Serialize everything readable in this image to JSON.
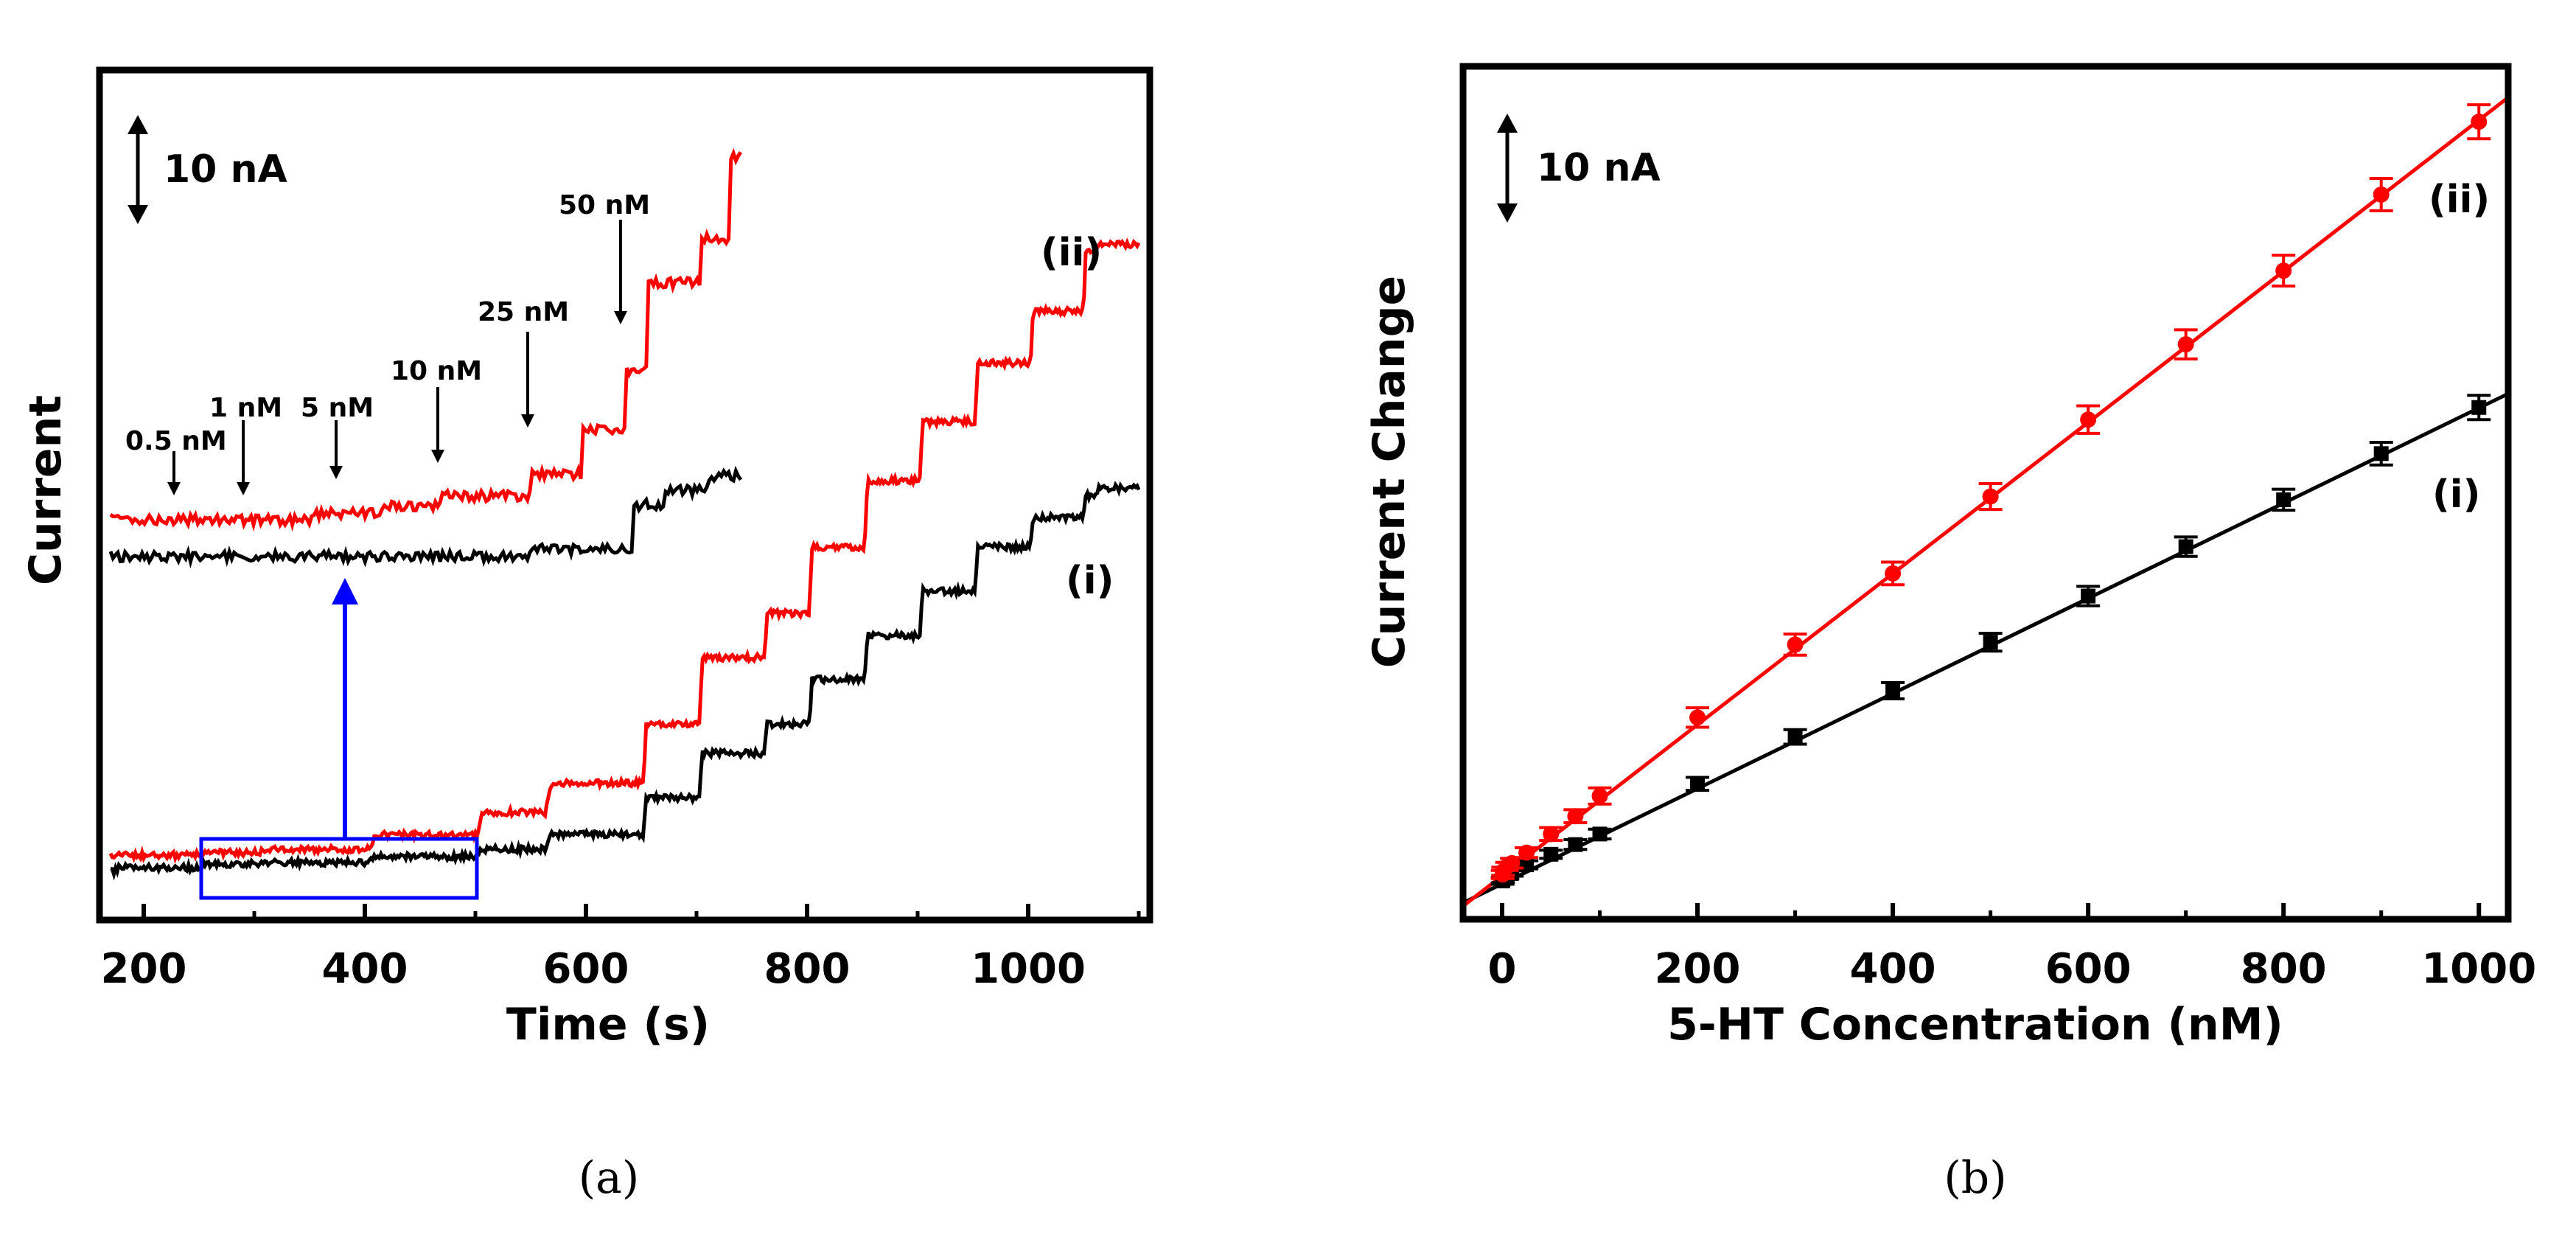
{
  "colors": {
    "series_i": "#000000",
    "series_ii": "#ff0000",
    "inset_box": "#0000ff",
    "axes": "#000000"
  },
  "chart_data": [
    {
      "panel": "(a)",
      "type": "line",
      "xlabel": "Time (s)",
      "ylabel": "Current",
      "xlim": [
        160,
        1110
      ],
      "ylim": [
        0,
        100
      ],
      "xticks": [
        200,
        400,
        600,
        800,
        1000
      ],
      "scale_bar_label": "10 nA",
      "series": [
        {
          "name": "(i)",
          "color": "#000000",
          "x": [
            170,
            250,
            300,
            400,
            500,
            560,
            650,
            700,
            760,
            800,
            850,
            900,
            950,
            1000,
            1050,
            1060,
            1100
          ],
          "y": [
            4,
            4.5,
            5,
            5.2,
            6,
            7,
            9,
            14,
            20,
            24,
            30,
            36,
            42,
            48,
            52,
            55,
            56
          ]
        },
        {
          "name": "(ii)",
          "color": "#ff0000",
          "x": [
            170,
            250,
            300,
            400,
            500,
            560,
            650,
            700,
            760,
            800,
            850,
            900,
            950,
            1000,
            1050,
            1060,
            1100
          ],
          "y": [
            6,
            6.2,
            6.5,
            7,
            9,
            12,
            16,
            24,
            33,
            39,
            48,
            57,
            65,
            73,
            80,
            88,
            89
          ]
        }
      ],
      "inset": {
        "x_range": [
          250,
          500
        ],
        "steps": [
          {
            "label": "0.5 nM",
            "x": 230
          },
          {
            "label": "1 nM",
            "x": 290
          },
          {
            "label": "5 nM",
            "x": 375
          },
          {
            "label": "10 nM",
            "x": 465
          },
          {
            "label": "25 nM",
            "x": 550
          },
          {
            "label": "50 nM",
            "x": 635
          }
        ]
      }
    },
    {
      "panel": "(b)",
      "type": "scatter",
      "xlabel": "5-HT Concentration (nM)",
      "ylabel": "Current Change",
      "xlim": [
        -40,
        1030
      ],
      "ylim": [
        0,
        100
      ],
      "xticks": [
        0,
        200,
        400,
        600,
        800,
        1000
      ],
      "scale_bar_label": "10 nA",
      "series": [
        {
          "name": "(i)",
          "color": "#000000",
          "marker": "square",
          "x": [
            0.5,
            1,
            5,
            10,
            25,
            50,
            75,
            100,
            200,
            300,
            400,
            500,
            600,
            700,
            800,
            900,
            1000
          ],
          "y": [
            3,
            3.2,
            3.6,
            4,
            5,
            6.3,
            7.5,
            8.8,
            15,
            20.8,
            26.5,
            32.5,
            38.2,
            44.3,
            50.1,
            55.8,
            61.5
          ],
          "err": [
            0.4,
            0.4,
            0.4,
            0.4,
            0.5,
            0.5,
            0.6,
            0.6,
            0.8,
            0.9,
            1,
            1.1,
            1.2,
            1.2,
            1.3,
            1.4,
            1.5
          ]
        },
        {
          "name": "(ii)",
          "color": "#ff0000",
          "marker": "circle",
          "x": [
            0.5,
            1,
            5,
            10,
            25,
            50,
            75,
            100,
            200,
            300,
            400,
            500,
            600,
            700,
            800,
            900,
            1000
          ],
          "y": [
            3.8,
            4.2,
            4.8,
            5.2,
            6.5,
            8.8,
            11,
            13.5,
            23.2,
            32.2,
            41,
            50.5,
            60,
            69.3,
            78.4,
            87.8,
            96.8
          ],
          "err": [
            0.5,
            0.5,
            0.5,
            0.6,
            0.6,
            0.8,
            0.8,
            1,
            1.2,
            1.3,
            1.4,
            1.6,
            1.7,
            1.8,
            1.9,
            2,
            2.1
          ]
        }
      ],
      "fits": [
        {
          "series": "(i)",
          "x": [
            -40,
            1030
          ],
          "y": [
            0.3,
            63.2
          ]
        },
        {
          "series": "(ii)",
          "x": [
            -40,
            1030
          ],
          "y": [
            -0.1,
            99.8
          ]
        }
      ]
    }
  ],
  "captions": {
    "a": "(a)",
    "b": "(b)"
  }
}
